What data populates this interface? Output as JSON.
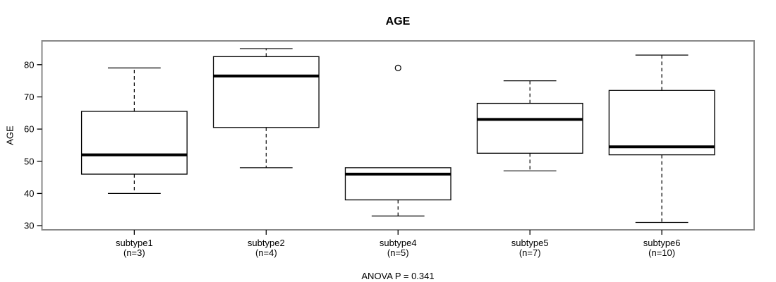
{
  "chart_data": {
    "type": "boxplot",
    "title": "AGE",
    "ylabel": "AGE",
    "subtitle": "ANOVA P = 0.341",
    "ylim": [
      28.7,
      87.4
    ],
    "yticks": [
      30,
      40,
      50,
      60,
      70,
      80
    ],
    "grid": false,
    "groups": [
      {
        "label": "subtype1",
        "n_label": "(n=3)",
        "n": 3,
        "whisker_low": 40,
        "q1": 46,
        "median": 52,
        "q3": 65.5,
        "whisker_high": 79,
        "outliers": []
      },
      {
        "label": "subtype2",
        "n_label": "(n=4)",
        "n": 4,
        "whisker_low": 48,
        "q1": 60.5,
        "median": 76.5,
        "q3": 82.5,
        "whisker_high": 85,
        "outliers": []
      },
      {
        "label": "subtype4",
        "n_label": "(n=5)",
        "n": 5,
        "whisker_low": 33,
        "q1": 38,
        "median": 46,
        "q3": 48,
        "whisker_high": 48,
        "outliers": [
          79
        ]
      },
      {
        "label": "subtype5",
        "n_label": "(n=7)",
        "n": 7,
        "whisker_low": 47,
        "q1": 52.5,
        "median": 63,
        "q3": 68,
        "whisker_high": 75,
        "outliers": []
      },
      {
        "label": "subtype6",
        "n_label": "(n=10)",
        "n": 10,
        "whisker_low": 31,
        "q1": 52,
        "median": 54.5,
        "q3": 72,
        "whisker_high": 83,
        "outliers": []
      }
    ],
    "colors": {
      "background": "#ffffff",
      "frame": "#888888",
      "box_stroke": "#000000",
      "box_fill": "#ffffff",
      "median": "#000000",
      "whisker": "#000000",
      "tick": "#000000",
      "text": "#000000"
    }
  }
}
